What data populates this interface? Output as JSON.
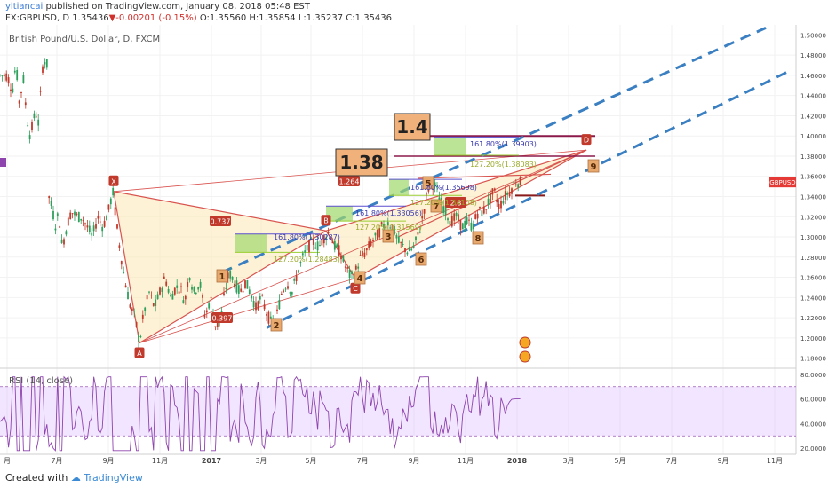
{
  "header": {
    "user": "yltiancai",
    "published": "published on TradingView.com, January 08, 2018 05:48 EST",
    "symbol": "FX:GBPUSD, D",
    "last": "1.35436",
    "change": "-0.00201 (-0.15%)",
    "ohlc": "O:1.35560 H:1.35854 L:1.35237 C:1.35436"
  },
  "chart_title": "British Pound/U.S. Dollar, D, FXCM",
  "rsi_label": "RSI (14, close)",
  "price_badge": "GBPUSD",
  "footer": {
    "created": "Created with",
    "brand": "TradingView"
  },
  "colors": {
    "candle_up": "#2e9e5b",
    "candle_down": "#c0392b",
    "pattern": "#d9534f",
    "channel": "#3a7fc1",
    "rsi": "#8e44ad",
    "fib_box": "#9fd86b",
    "label_box": "#f0b27a"
  },
  "chart_data": {
    "type": "candlestick",
    "x_ticks": [
      "月",
      "7月",
      "9月",
      "11月",
      "2017",
      "3月",
      "5月",
      "7月",
      "9月",
      "11月",
      "2018",
      "3月",
      "5月",
      "7月",
      "9月",
      "11月"
    ],
    "y_ticks": [
      "1.18000",
      "1.20000",
      "1.22000",
      "1.24000",
      "1.26000",
      "1.28000",
      "1.30000",
      "1.32000",
      "1.34000",
      "1.36000",
      "1.38000",
      "1.40000",
      "1.42000",
      "1.44000",
      "1.46000",
      "1.48000",
      "1.50000"
    ],
    "ylim": [
      1.17,
      1.51
    ],
    "last_price": 1.35436,
    "price_path": [
      [
        0,
        1.46
      ],
      [
        8,
        1.46
      ],
      [
        14,
        1.445
      ],
      [
        18,
        1.472
      ],
      [
        22,
        1.43
      ],
      [
        26,
        1.46
      ],
      [
        30,
        1.42
      ],
      [
        34,
        1.4
      ],
      [
        40,
        1.425
      ],
      [
        44,
        1.41
      ],
      [
        47,
        1.465
      ],
      [
        50,
        1.475
      ],
      [
        53,
        1.47
      ],
      [
        55,
        1.34
      ],
      [
        58,
        1.33
      ],
      [
        63,
        1.31
      ],
      [
        66,
        1.325
      ],
      [
        70,
        1.29
      ],
      [
        75,
        1.31
      ],
      [
        80,
        1.325
      ],
      [
        87,
        1.32
      ],
      [
        92,
        1.32
      ],
      [
        98,
        1.31
      ],
      [
        104,
        1.3
      ],
      [
        110,
        1.32
      ],
      [
        116,
        1.31
      ],
      [
        122,
        1.325
      ],
      [
        127,
        1.345
      ],
      [
        133,
        1.3
      ],
      [
        140,
        1.26
      ],
      [
        147,
        1.23
      ],
      [
        152,
        1.22
      ],
      [
        157,
        1.195
      ],
      [
        162,
        1.225
      ],
      [
        168,
        1.245
      ],
      [
        174,
        1.23
      ],
      [
        180,
        1.245
      ],
      [
        186,
        1.26
      ],
      [
        192,
        1.24
      ],
      [
        198,
        1.25
      ],
      [
        203,
        1.25
      ],
      [
        208,
        1.235
      ],
      [
        213,
        1.265
      ],
      [
        218,
        1.245
      ],
      [
        225,
        1.255
      ],
      [
        231,
        1.22
      ],
      [
        237,
        1.24
      ],
      [
        243,
        1.21
      ],
      [
        249,
        1.22
      ],
      [
        253,
        1.245
      ],
      [
        258,
        1.265
      ],
      [
        264,
        1.255
      ],
      [
        270,
        1.245
      ],
      [
        276,
        1.255
      ],
      [
        282,
        1.245
      ],
      [
        288,
        1.23
      ],
      [
        294,
        1.24
      ],
      [
        300,
        1.225
      ],
      [
        305,
        1.215
      ],
      [
        311,
        1.22
      ],
      [
        317,
        1.245
      ],
      [
        323,
        1.255
      ],
      [
        329,
        1.245
      ],
      [
        335,
        1.265
      ],
      [
        341,
        1.28
      ],
      [
        347,
        1.29
      ],
      [
        353,
        1.295
      ],
      [
        359,
        1.29
      ],
      [
        365,
        1.3
      ],
      [
        371,
        1.305
      ],
      [
        377,
        1.29
      ],
      [
        383,
        1.285
      ],
      [
        389,
        1.27
      ],
      [
        395,
        1.26
      ],
      [
        400,
        1.265
      ],
      [
        406,
        1.28
      ],
      [
        412,
        1.285
      ],
      [
        418,
        1.295
      ],
      [
        424,
        1.3
      ],
      [
        430,
        1.31
      ],
      [
        436,
        1.315
      ],
      [
        442,
        1.31
      ],
      [
        448,
        1.295
      ],
      [
        454,
        1.29
      ],
      [
        460,
        1.285
      ],
      [
        466,
        1.29
      ],
      [
        472,
        1.305
      ],
      [
        478,
        1.33
      ],
      [
        484,
        1.355
      ],
      [
        490,
        1.35
      ],
      [
        496,
        1.335
      ],
      [
        502,
        1.325
      ],
      [
        508,
        1.315
      ],
      [
        514,
        1.32
      ],
      [
        520,
        1.31
      ],
      [
        526,
        1.315
      ],
      [
        532,
        1.31
      ],
      [
        538,
        1.325
      ],
      [
        544,
        1.325
      ],
      [
        550,
        1.335
      ],
      [
        556,
        1.345
      ],
      [
        562,
        1.33
      ],
      [
        568,
        1.34
      ],
      [
        574,
        1.345
      ],
      [
        580,
        1.355
      ],
      [
        586,
        1.354
      ]
    ],
    "pattern_points": [
      {
        "name": "X",
        "t": 128,
        "p": 1.345
      },
      {
        "name": "A",
        "t": 157,
        "p": 1.195
      },
      {
        "name": "B",
        "t": 367,
        "p": 1.306
      },
      {
        "name": "C",
        "t": 400,
        "p": 1.259
      },
      {
        "name": "D",
        "t": 660,
        "p": 1.386
      }
    ],
    "ratio_labels": [
      "0.737",
      "0.397",
      "1.264",
      "2.8"
    ],
    "wave_labels": [
      "1",
      "2",
      "3",
      "4",
      "5",
      "6",
      "7",
      "8",
      "9"
    ],
    "fib_levels": [
      {
        "pct": "161.80%",
        "price": "1.30287"
      },
      {
        "pct": "127.20%",
        "price": "1.28483"
      },
      {
        "pct": "161.80%",
        "price": "1.33056"
      },
      {
        "pct": "127.20%",
        "price": "1.31569"
      },
      {
        "pct": "161.80%",
        "price": "1.35698"
      },
      {
        "pct": "127.20%",
        "price": "1.34108"
      },
      {
        "pct": "161.80%",
        "price": "1.39903"
      },
      {
        "pct": "127.20%",
        "price": "1.38083"
      }
    ],
    "callouts": [
      "1.4",
      "1.38"
    ],
    "rsi_ticks": [
      "20.0000",
      "40.0000",
      "60.0000",
      "80.0000"
    ],
    "rsi_ylim": [
      15,
      85
    ],
    "rsi_band": [
      30,
      70
    ],
    "rsi_last": 60
  }
}
